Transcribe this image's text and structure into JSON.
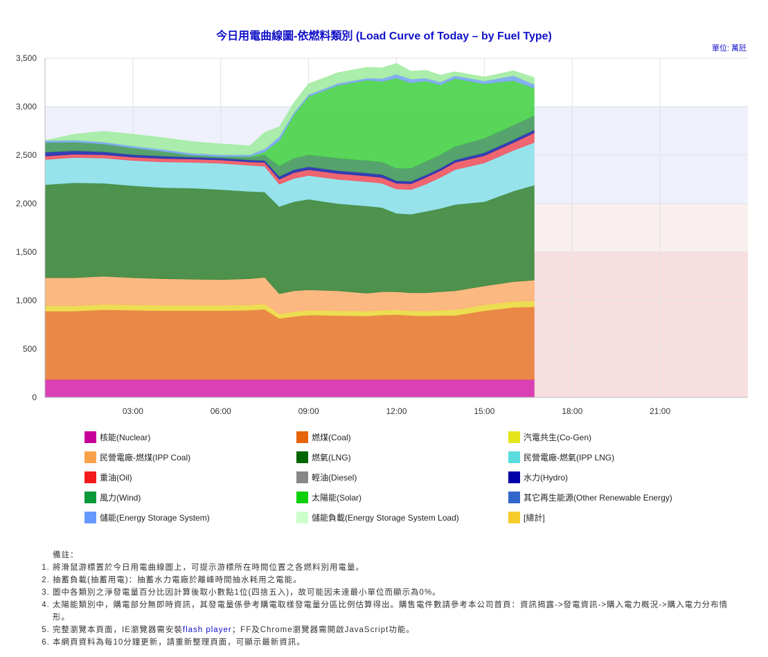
{
  "header": {
    "title": "今日用電曲線圖-依燃料類別 (Load Curve of Today – by Fuel Type)",
    "unit": "單位: 萬瓩"
  },
  "colors": {
    "nuclear": "#d633b0",
    "coal": "#e8803a",
    "cogen": "#ecdc46",
    "ipp_coal": "#fcb478",
    "lng": "#3f8a3f",
    "ipp_lng": "#8fe2ea",
    "oil": "#f05a64",
    "hydro": "#2430b0",
    "wind": "#4a9c62",
    "solar": "#4cd44c",
    "energy_storage": "#79a8f0",
    "storage_load": "#a4eca4",
    "band_blue": "#eef0fb",
    "band_red": "#f6dcdc"
  },
  "legend": [
    {
      "key": "nuclear",
      "label": "核能(Nuclear)",
      "color": "#c8009a"
    },
    {
      "key": "coal",
      "label": "燃煤(Coal)",
      "color": "#e8640a"
    },
    {
      "key": "cogen",
      "label": "汽電共生(Co-Gen)",
      "color": "#e4e41a"
    },
    {
      "key": "ipp_coal",
      "label": "民營電廠-燃煤(IPP Coal)",
      "color": "#fca24a"
    },
    {
      "key": "lng",
      "label": "燃氣(LNG)",
      "color": "#006400"
    },
    {
      "key": "ipp_lng",
      "label": "民營電廠-燃氣(IPP LNG)",
      "color": "#5adcdc"
    },
    {
      "key": "oil",
      "label": "重油(Oil)",
      "color": "#f21a1a"
    },
    {
      "key": "diesel",
      "label": "輕油(Diesel)",
      "color": "#888888"
    },
    {
      "key": "hydro",
      "label": "水力(Hydro)",
      "color": "#0000a8"
    },
    {
      "key": "wind",
      "label": "風力(Wind)",
      "color": "#0a9a3a"
    },
    {
      "key": "solar",
      "label": "太陽能(Solar)",
      "color": "#0ad00a"
    },
    {
      "key": "other_renewable",
      "label": "其它再生能源(Other Renewable Energy)",
      "color": "#3366cc"
    },
    {
      "key": "energy_storage",
      "label": "儲能(Energy Storage System)",
      "color": "#6699ff"
    },
    {
      "key": "storage_load",
      "label": "儲能負載(Energy Storage System Load)",
      "color": "#ccffcc"
    },
    {
      "key": "total",
      "label": "[總計]",
      "color": "#f5cc2a"
    }
  ],
  "notes": {
    "title": "備註：",
    "items": [
      "將滑鼠游標置於今日用電曲線圖上，可提示游標所在時間位置之各燃料別用電量。",
      "抽蓄負載(抽蓄用電)：抽蓄水力電廠於離峰時間抽水耗用之電能。",
      "圖中各類別之淨發電量百分比因計算後取小數點1位(四捨五入)，故可能因未達最小單位而顯示為0%。",
      "太陽能類別中，購電部分無即時資訊，其發電量係參考購電取樣發電量分區比例估算得出。購售電件數請參考本公司首頁：資訊揭露->發電資訊->購入電力概況->購入電力分布情形。"
    ],
    "item5_prefix": "完整瀏覽本頁面，IE瀏覽器需安裝",
    "item5_link": "flash player",
    "item5_suffix": "；FF及Chrome瀏覽器需開啟JavaScript功能。",
    "item6": "本網頁資料為每10分鐘更新，請重新整理頁面，可顯示最新資訊。"
  },
  "chart_data": {
    "type": "area",
    "stacked": true,
    "title": "今日用電曲線圖-依燃料類別 (Load Curve of Today – by Fuel Type)",
    "unit": "單位: 萬瓩",
    "x_range_hours": [
      0,
      24
    ],
    "xticks": [
      "03:00",
      "06:00",
      "09:00",
      "12:00",
      "15:00",
      "18:00",
      "21:00"
    ],
    "ylim": [
      0,
      3500
    ],
    "yticks": [
      0,
      500,
      1000,
      1500,
      2000,
      2500,
      3000,
      3500
    ],
    "ytick_labels": [
      "0",
      "500",
      "1,000",
      "1,500",
      "2,000",
      "2,500",
      "3,000",
      "3,500"
    ],
    "bands": [
      {
        "from": 0,
        "to": 1500,
        "color": "band_red"
      },
      {
        "from": 1500,
        "to": 2000,
        "color": "band_red_light"
      },
      {
        "from": 2000,
        "to": 3000,
        "color": "band_blue"
      }
    ],
    "x": [
      0.0,
      1.0,
      2.0,
      3.0,
      4.0,
      5.0,
      6.0,
      7.0,
      7.5,
      8.0,
      8.5,
      9.0,
      10.0,
      11.0,
      11.5,
      12.0,
      12.5,
      13.0,
      13.5,
      14.0,
      15.0,
      16.0,
      16.7
    ],
    "series": [
      {
        "key": "nuclear",
        "values": [
          185,
          185,
          185,
          185,
          185,
          185,
          185,
          185,
          185,
          185,
          185,
          185,
          185,
          185,
          185,
          185,
          185,
          185,
          185,
          185,
          185,
          185,
          185
        ]
      },
      {
        "key": "coal",
        "values": [
          705,
          705,
          720,
          715,
          710,
          710,
          710,
          715,
          725,
          630,
          650,
          665,
          660,
          655,
          665,
          670,
          660,
          655,
          660,
          660,
          710,
          745,
          750
        ]
      },
      {
        "key": "cogen",
        "values": [
          55,
          55,
          55,
          55,
          55,
          55,
          55,
          55,
          55,
          45,
          50,
          50,
          50,
          50,
          50,
          50,
          50,
          50,
          55,
          60,
          60,
          60,
          60
        ]
      },
      {
        "key": "ipp_coal",
        "values": [
          290,
          290,
          290,
          280,
          275,
          270,
          265,
          270,
          275,
          210,
          215,
          210,
          205,
          185,
          190,
          185,
          185,
          190,
          190,
          195,
          195,
          205,
          215
        ]
      },
      {
        "key": "lng",
        "values": [
          960,
          980,
          960,
          950,
          940,
          940,
          930,
          900,
          880,
          900,
          920,
          935,
          900,
          900,
          870,
          810,
          810,
          840,
          860,
          890,
          870,
          935,
          980
        ]
      },
      {
        "key": "ipp_lng",
        "values": [
          260,
          260,
          260,
          260,
          265,
          265,
          270,
          270,
          265,
          230,
          240,
          245,
          250,
          250,
          250,
          250,
          255,
          280,
          320,
          360,
          400,
          420,
          440
        ]
      },
      {
        "key": "oil",
        "values": [
          35,
          35,
          35,
          35,
          35,
          35,
          35,
          35,
          40,
          50,
          60,
          60,
          60,
          60,
          60,
          60,
          60,
          70,
          70,
          75,
          75,
          80,
          100
        ]
      },
      {
        "key": "hydro",
        "values": [
          40,
          35,
          30,
          25,
          25,
          20,
          20,
          20,
          20,
          30,
          30,
          30,
          30,
          30,
          30,
          25,
          25,
          25,
          25,
          25,
          30,
          30,
          30
        ]
      },
      {
        "key": "wind",
        "values": [
          100,
          90,
          80,
          70,
          50,
          20,
          15,
          30,
          60,
          110,
          120,
          125,
          130,
          130,
          130,
          130,
          135,
          140,
          140,
          140,
          150,
          150,
          150
        ]
      },
      {
        "key": "solar",
        "values": [
          0,
          0,
          0,
          0,
          0,
          0,
          0,
          5,
          30,
          260,
          450,
          600,
          750,
          830,
          830,
          930,
          880,
          830,
          720,
          700,
          560,
          460,
          280
        ]
      },
      {
        "key": "energy_storage",
        "values": [
          20,
          20,
          20,
          20,
          20,
          20,
          20,
          20,
          30,
          40,
          20,
          20,
          20,
          20,
          30,
          40,
          40,
          30,
          30,
          30,
          30,
          50,
          40
        ]
      },
      {
        "key": "storage_load",
        "values": [
          0,
          60,
          110,
          120,
          120,
          120,
          110,
          90,
          170,
          100,
          100,
          110,
          110,
          110,
          110,
          110,
          80,
          80,
          70,
          40,
          40,
          50,
          70
        ]
      }
    ]
  }
}
